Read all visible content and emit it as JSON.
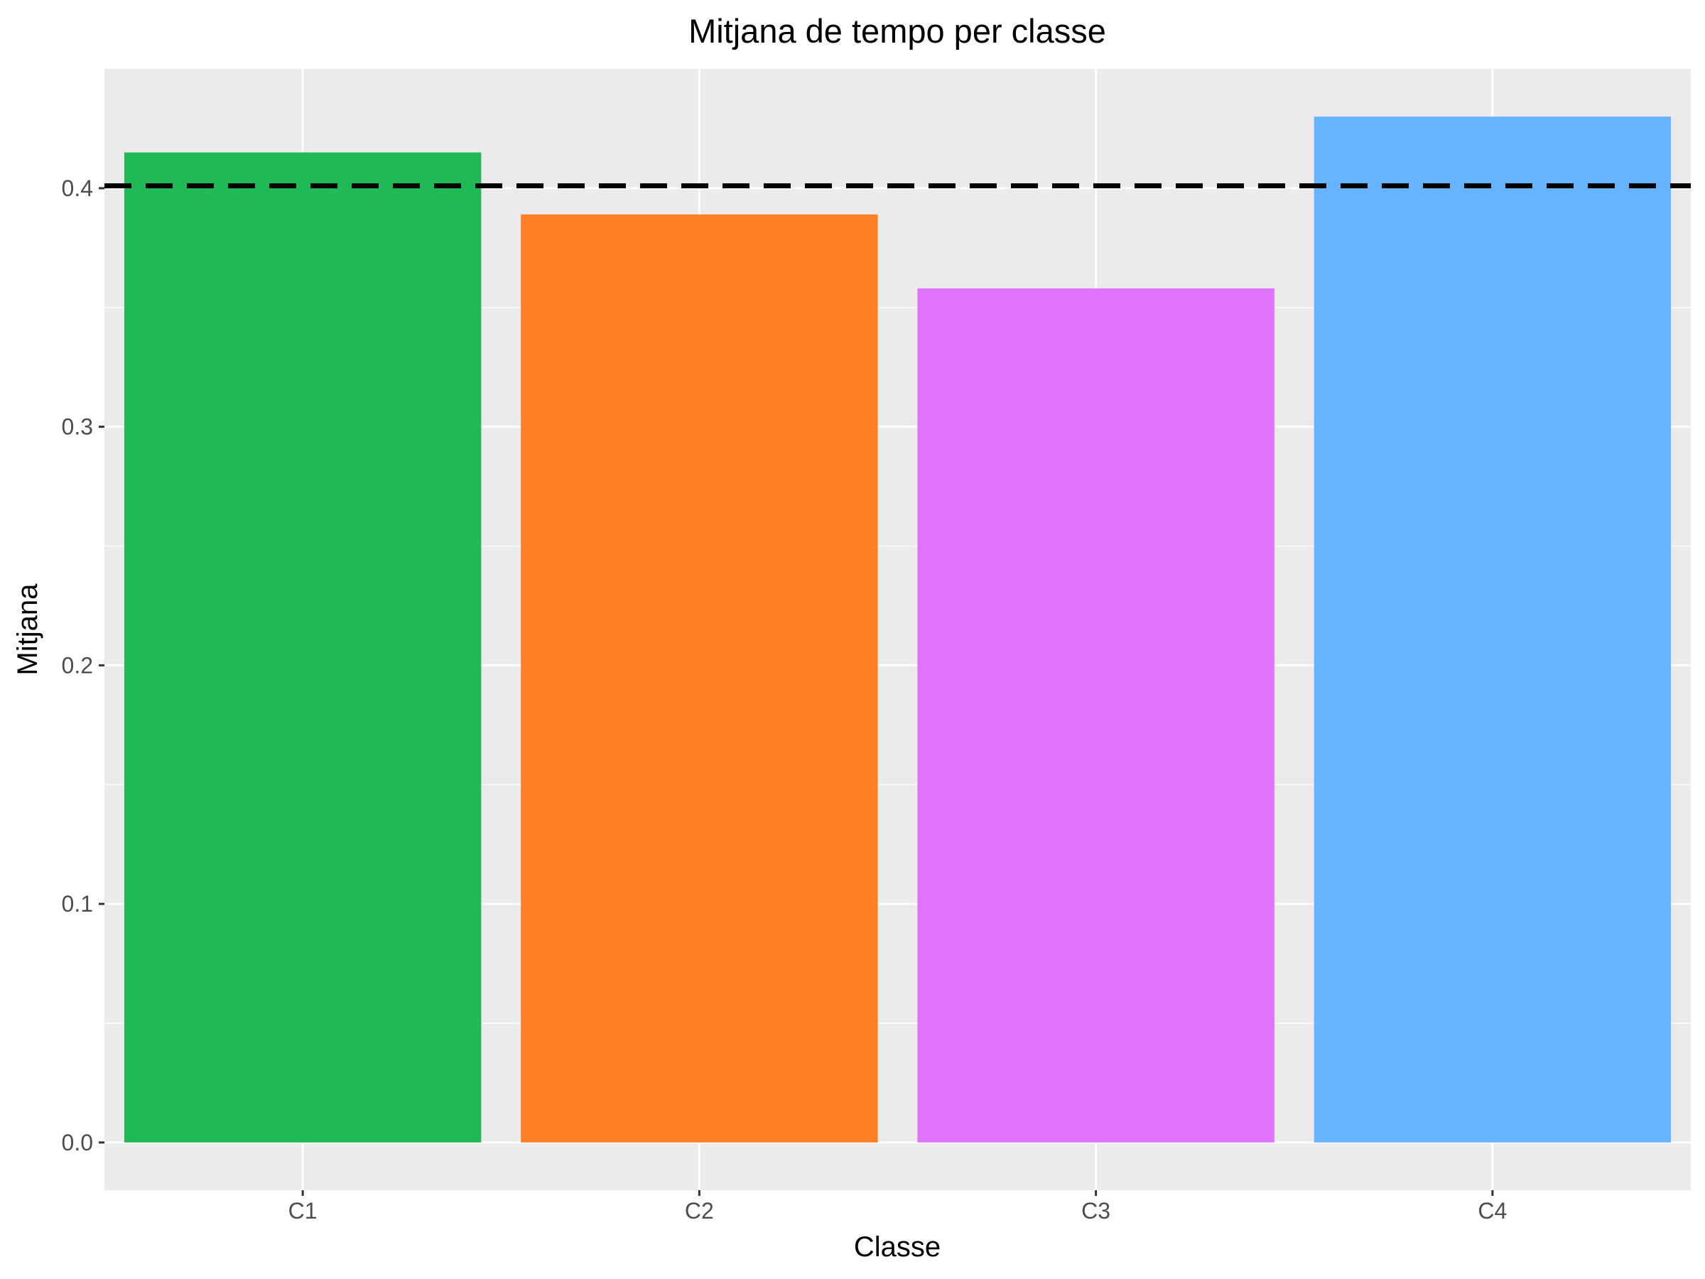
{
  "chart_data": {
    "type": "bar",
    "title": "Mitjana de tempo per classe",
    "xlabel": "Classe",
    "ylabel": "Mitjana",
    "categories": [
      "C1",
      "C2",
      "C3",
      "C4"
    ],
    "values": [
      0.415,
      0.389,
      0.358,
      0.43
    ],
    "colors": [
      "#1FB955",
      "#FF7F27",
      "#DF73FB",
      "#66B3FF"
    ],
    "reference_line": {
      "value": 0.401,
      "style": "dashed",
      "color": "#000000"
    },
    "ylim": [
      -0.02,
      0.45
    ],
    "y_ticks": [
      0.0,
      0.1,
      0.2,
      0.3,
      0.4
    ],
    "y_tick_labels": [
      "0.0",
      "0.1",
      "0.2",
      "0.3",
      "0.4"
    ],
    "grid": true,
    "panel_background": "#EBEBEB",
    "grid_color": "#FFFFFF"
  }
}
